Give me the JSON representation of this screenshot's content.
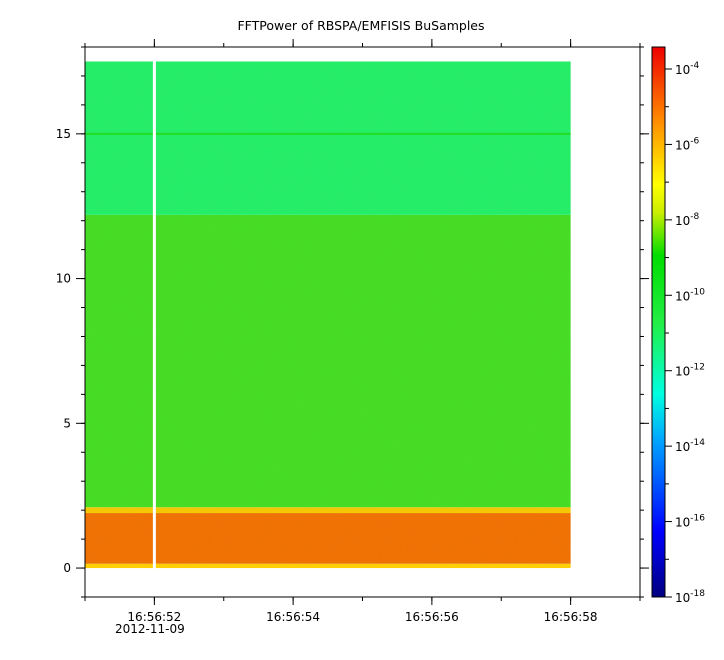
{
  "chart_data": {
    "type": "heatmap",
    "title": "FFTPower of RBSPA/EMFISIS  BuSamples",
    "xlabel": "",
    "ylabel": "",
    "x_ticks": [
      "16:56:52",
      "16:56:54",
      "16:56:56",
      "16:56:58"
    ],
    "x_date_label": "2012-11-09",
    "x_range": [
      "16:56:51.0",
      "16:56:59.0"
    ],
    "data_x_range": [
      "16:56:51.0",
      "16:56:58.0"
    ],
    "ylim": [
      -1,
      18
    ],
    "y_ticks": [
      0,
      5,
      10,
      15
    ],
    "data_y_range": [
      0,
      17.5
    ],
    "gap_time": "16:56:52.0",
    "colorbar": {
      "scale": "log",
      "range": [
        "1e-18",
        "1e-4"
      ],
      "ticks": [
        -18,
        -16,
        -14,
        -12,
        -10,
        -8,
        -6,
        -4
      ]
    },
    "bands": [
      {
        "y_min": 0.0,
        "y_max": 0.15,
        "log_power": -8.0,
        "color": "#ffd000"
      },
      {
        "y_min": 0.15,
        "y_max": 1.9,
        "log_power": -6.5,
        "color": "#f07000"
      },
      {
        "y_min": 1.9,
        "y_max": 2.1,
        "log_power": -8.0,
        "color": "#f5c800"
      },
      {
        "y_min": 2.1,
        "y_max": 12.2,
        "log_power": -10.3,
        "color": "#44dd22"
      },
      {
        "y_min": 12.2,
        "y_max": 17.5,
        "log_power": -11.5,
        "color": "#22ee66"
      }
    ],
    "lines": [
      {
        "y": 15.0,
        "color": "#22dd22"
      }
    ]
  }
}
